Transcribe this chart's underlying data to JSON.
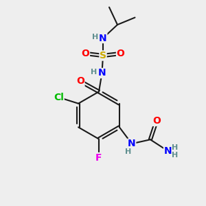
{
  "bg_color": "#eeeeee",
  "bond_color": "#1a1a1a",
  "bond_width": 1.5,
  "atom_colors": {
    "C": "#1a1a1a",
    "H": "#5f8f8f",
    "N": "#0000ff",
    "O": "#ff0000",
    "S": "#ccaa00",
    "Cl": "#00bb00",
    "F": "#ee00ee"
  },
  "font_size_atom": 10,
  "font_size_h": 8
}
